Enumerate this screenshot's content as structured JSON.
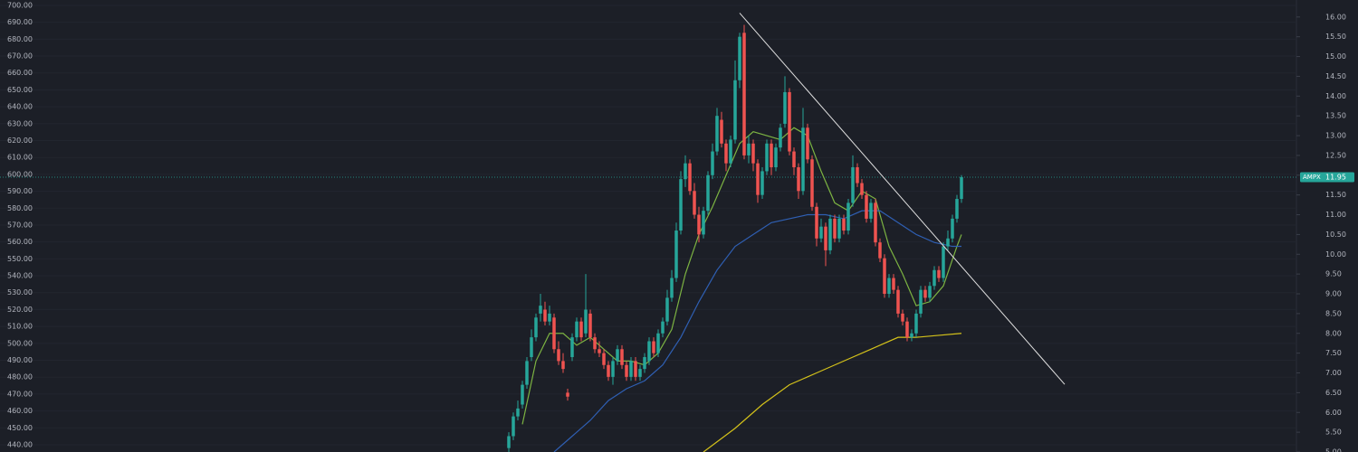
{
  "chart_data": {
    "type": "candlestick",
    "symbol": "AMPX",
    "last_price": 11.95,
    "grid": true,
    "ylim": [
      435.7,
      703.2
    ],
    "yticks": [
      {
        "value": 440,
        "label": "440.00"
      },
      {
        "value": 450,
        "label": "450.00"
      },
      {
        "value": 460,
        "label": "460.00"
      },
      {
        "value": 470,
        "label": "470.00"
      },
      {
        "value": 480,
        "label": "480.00"
      },
      {
        "value": 490,
        "label": "490.00"
      },
      {
        "value": 500,
        "label": "500.00"
      },
      {
        "value": 510,
        "label": "510.00"
      },
      {
        "value": 520,
        "label": "520.00"
      },
      {
        "value": 530,
        "label": "530.00"
      },
      {
        "value": 540,
        "label": "540.00"
      },
      {
        "value": 550,
        "label": "550.00"
      },
      {
        "value": 560,
        "label": "560.00"
      },
      {
        "value": 570,
        "label": "570.00"
      },
      {
        "value": 580,
        "label": "580.00"
      },
      {
        "value": 590,
        "label": "590.00"
      },
      {
        "value": 600,
        "label": "600.00"
      },
      {
        "value": 610,
        "label": "610.00"
      },
      {
        "value": 620,
        "label": "620.00"
      },
      {
        "value": 630,
        "label": "630.00"
      },
      {
        "value": 640,
        "label": "640.00"
      },
      {
        "value": 650,
        "label": "650.00"
      },
      {
        "value": 660,
        "label": "660.00"
      },
      {
        "value": 670,
        "label": "670.00"
      },
      {
        "value": 680,
        "label": "680.00"
      },
      {
        "value": 690,
        "label": "690.00"
      },
      {
        "value": 700,
        "label": "700.00"
      }
    ],
    "y2lim": [
      5,
      16.43
    ],
    "y2ticks": [
      {
        "value": 5,
        "label": "5.00"
      },
      {
        "value": 5.5,
        "label": "5.50"
      },
      {
        "value": 6,
        "label": "6.00"
      },
      {
        "value": 6.5,
        "label": "6.50"
      },
      {
        "value": 7,
        "label": "7.00"
      },
      {
        "value": 7.5,
        "label": "7.50"
      },
      {
        "value": 8,
        "label": "8.00"
      },
      {
        "value": 8.5,
        "label": "8.50"
      },
      {
        "value": 9,
        "label": "9.00"
      },
      {
        "value": 9.5,
        "label": "9.50"
      },
      {
        "value": 10,
        "label": "10.00"
      },
      {
        "value": 10.5,
        "label": "10.50"
      },
      {
        "value": 11,
        "label": "11.00"
      },
      {
        "value": 11.5,
        "label": "11.50"
      },
      {
        "value": 12,
        "label": "12.00"
      },
      {
        "value": 12.5,
        "label": "12.50"
      },
      {
        "value": 13,
        "label": "13.00"
      },
      {
        "value": 13.5,
        "label": "13.50"
      },
      {
        "value": 14,
        "label": "14.00"
      },
      {
        "value": 14.5,
        "label": "14.50"
      },
      {
        "value": 15,
        "label": "15.00"
      },
      {
        "value": 15.5,
        "label": "15.50"
      },
      {
        "value": 16,
        "label": "16.00"
      }
    ],
    "series": [
      {
        "type": "candlestick",
        "axis": "y2",
        "up_color": "#26a69a",
        "down_color": "#ef5350",
        "values": [
          [
            5.1,
            5.5,
            5.0,
            5.4
          ],
          [
            5.4,
            6.0,
            5.3,
            5.9
          ],
          [
            5.9,
            6.3,
            5.8,
            6.1
          ],
          [
            6.2,
            6.8,
            6.1,
            6.7
          ],
          [
            6.7,
            7.4,
            6.6,
            7.3
          ],
          [
            7.4,
            8.1,
            7.3,
            7.9
          ],
          [
            7.9,
            8.5,
            7.8,
            8.4
          ],
          [
            8.5,
            9.0,
            8.3,
            8.7
          ],
          [
            8.6,
            8.8,
            8.2,
            8.3
          ],
          [
            8.3,
            8.7,
            8.2,
            8.5
          ],
          [
            8.4,
            8.5,
            7.5,
            7.6
          ],
          [
            7.6,
            7.8,
            7.2,
            7.3
          ],
          [
            7.3,
            7.5,
            7.0,
            7.1
          ],
          [
            6.5,
            6.6,
            6.3,
            6.4
          ],
          [
            7.4,
            8.0,
            7.3,
            7.9
          ],
          [
            7.9,
            8.4,
            7.8,
            8.3
          ],
          [
            8.3,
            8.4,
            7.8,
            7.9
          ],
          [
            8.0,
            9.5,
            7.9,
            8.6
          ],
          [
            8.5,
            8.6,
            7.8,
            7.9
          ],
          [
            7.9,
            8.0,
            7.5,
            7.6
          ],
          [
            7.6,
            7.8,
            7.4,
            7.5
          ],
          [
            7.5,
            7.6,
            7.1,
            7.2
          ],
          [
            7.2,
            7.3,
            6.8,
            6.9
          ],
          [
            6.9,
            7.4,
            6.7,
            7.3
          ],
          [
            7.3,
            7.7,
            7.2,
            7.6
          ],
          [
            7.6,
            7.7,
            7.1,
            7.2
          ],
          [
            7.2,
            7.3,
            6.8,
            6.9
          ],
          [
            6.9,
            7.4,
            6.8,
            7.3
          ],
          [
            7.3,
            7.4,
            6.8,
            6.9
          ],
          [
            6.9,
            7.2,
            6.8,
            7.1
          ],
          [
            7.1,
            7.5,
            7.0,
            7.4
          ],
          [
            7.3,
            7.9,
            7.2,
            7.8
          ],
          [
            7.8,
            7.9,
            7.4,
            7.5
          ],
          [
            7.5,
            8.1,
            7.4,
            8.0
          ],
          [
            8.0,
            8.4,
            7.9,
            8.3
          ],
          [
            8.3,
            9.1,
            8.2,
            8.9
          ],
          [
            8.9,
            9.6,
            8.8,
            9.4
          ],
          [
            9.4,
            10.8,
            9.3,
            10.6
          ],
          [
            10.6,
            12.1,
            10.5,
            11.9
          ],
          [
            11.9,
            12.5,
            11.7,
            12.3
          ],
          [
            12.3,
            12.4,
            11.5,
            11.6
          ],
          [
            11.6,
            11.8,
            10.9,
            11.0
          ],
          [
            11.0,
            11.2,
            10.3,
            10.5
          ],
          [
            10.5,
            11.2,
            10.4,
            11.1
          ],
          [
            11.1,
            12.1,
            11.0,
            12.0
          ],
          [
            12.0,
            12.8,
            11.9,
            12.6
          ],
          [
            12.6,
            13.7,
            12.5,
            13.5
          ],
          [
            13.4,
            13.6,
            12.7,
            12.8
          ],
          [
            12.8,
            12.9,
            12.1,
            12.3
          ],
          [
            12.3,
            13.0,
            12.2,
            12.9
          ],
          [
            12.9,
            14.9,
            12.8,
            14.4
          ],
          [
            14.4,
            15.6,
            14.2,
            15.5
          ],
          [
            15.6,
            15.8,
            12.4,
            12.5
          ],
          [
            12.5,
            13.0,
            12.3,
            12.8
          ],
          [
            12.8,
            12.9,
            12.1,
            12.3
          ],
          [
            12.3,
            12.4,
            11.3,
            11.5
          ],
          [
            11.5,
            12.2,
            11.4,
            12.1
          ],
          [
            12.1,
            12.9,
            12.0,
            12.8
          ],
          [
            12.8,
            12.9,
            12.0,
            12.2
          ],
          [
            12.2,
            12.8,
            12.1,
            12.7
          ],
          [
            12.7,
            13.3,
            12.6,
            13.2
          ],
          [
            13.3,
            14.5,
            13.2,
            14.1
          ],
          [
            14.1,
            14.2,
            12.5,
            12.6
          ],
          [
            12.6,
            12.7,
            12.0,
            12.2
          ],
          [
            12.2,
            12.3,
            11.4,
            11.6
          ],
          [
            11.6,
            13.7,
            11.5,
            13.2
          ],
          [
            13.2,
            13.3,
            12.3,
            12.4
          ],
          [
            12.4,
            12.5,
            11.1,
            11.2
          ],
          [
            11.2,
            11.3,
            10.2,
            10.4
          ],
          [
            10.4,
            10.9,
            10.3,
            10.7
          ],
          [
            10.7,
            10.8,
            9.7,
            10.1
          ],
          [
            10.1,
            11.0,
            10.0,
            10.9
          ],
          [
            10.9,
            11.0,
            10.3,
            10.4
          ],
          [
            10.4,
            11.0,
            10.3,
            10.9
          ],
          [
            10.9,
            11.0,
            10.5,
            10.6
          ],
          [
            10.6,
            11.4,
            10.5,
            11.3
          ],
          [
            11.3,
            12.5,
            11.2,
            12.2
          ],
          [
            12.2,
            12.3,
            11.7,
            11.8
          ],
          [
            11.8,
            11.9,
            11.4,
            11.5
          ],
          [
            11.5,
            11.6,
            10.8,
            10.9
          ],
          [
            10.9,
            11.4,
            10.8,
            11.3
          ],
          [
            11.3,
            11.4,
            10.2,
            10.3
          ],
          [
            10.3,
            10.4,
            9.8,
            9.9
          ],
          [
            9.9,
            10.0,
            8.9,
            9.0
          ],
          [
            9.0,
            9.5,
            8.9,
            9.4
          ],
          [
            9.4,
            9.5,
            9.0,
            9.1
          ],
          [
            9.1,
            9.2,
            8.4,
            8.5
          ],
          [
            8.5,
            8.6,
            8.2,
            8.3
          ],
          [
            8.3,
            8.4,
            7.8,
            7.9
          ],
          [
            7.9,
            8.1,
            7.8,
            8.0
          ],
          [
            8.0,
            8.6,
            7.9,
            8.5
          ],
          [
            8.5,
            9.2,
            8.4,
            9.1
          ],
          [
            9.1,
            9.2,
            8.8,
            8.9
          ],
          [
            8.9,
            9.3,
            8.8,
            9.2
          ],
          [
            9.2,
            9.7,
            9.1,
            9.6
          ],
          [
            9.6,
            9.7,
            9.3,
            9.4
          ],
          [
            9.4,
            10.3,
            9.3,
            10.2
          ],
          [
            10.2,
            10.6,
            10.1,
            10.4
          ],
          [
            10.4,
            11.0,
            10.3,
            10.9
          ],
          [
            10.9,
            11.5,
            10.8,
            11.4
          ],
          [
            11.4,
            12.0,
            11.3,
            11.95
          ]
        ]
      },
      {
        "type": "line",
        "axis": "y2",
        "color": "#7cb342",
        "x": [
          3,
          6,
          9,
          12,
          15,
          18,
          21,
          24,
          27,
          30,
          33,
          36,
          39,
          42,
          45,
          48,
          51,
          54,
          57,
          60,
          63,
          66,
          69,
          72,
          75,
          78,
          81,
          84,
          87,
          90,
          93,
          96,
          99,
          100
        ],
        "values": [
          5.7,
          7.3,
          8.0,
          8.0,
          7.7,
          7.9,
          7.6,
          7.3,
          7.3,
          7.2,
          7.5,
          8.1,
          9.5,
          10.5,
          11.2,
          12.0,
          12.8,
          13.1,
          13.0,
          12.9,
          13.2,
          13.0,
          12.1,
          11.3,
          11.1,
          11.6,
          11.4,
          10.2,
          9.5,
          8.7,
          8.8,
          9.2,
          10.2,
          10.5
        ]
      },
      {
        "type": "line",
        "axis": "y2",
        "color": "#2f5fb3",
        "x": [
          10,
          14,
          18,
          22,
          26,
          30,
          34,
          38,
          42,
          46,
          50,
          54,
          58,
          62,
          66,
          70,
          74,
          78,
          82,
          86,
          90,
          94,
          98,
          100
        ],
        "values": [
          5.0,
          5.4,
          5.8,
          6.3,
          6.6,
          6.8,
          7.2,
          7.9,
          8.8,
          9.6,
          10.2,
          10.5,
          10.8,
          10.9,
          11.0,
          11.0,
          10.9,
          11.1,
          11.1,
          10.8,
          10.5,
          10.3,
          10.2,
          10.2
        ]
      },
      {
        "type": "line",
        "axis": "y2",
        "color": "#d4c21a",
        "x": [
          43,
          50,
          56,
          62,
          68,
          74,
          80,
          86,
          90,
          95,
          100
        ],
        "values": [
          5.0,
          5.6,
          6.2,
          6.7,
          7.0,
          7.3,
          7.6,
          7.9,
          7.9,
          7.95,
          8.0
        ]
      }
    ],
    "trendline": {
      "axis": "y2",
      "color": "#e0e0e0",
      "x": [
        51,
        122.8
      ],
      "values": [
        16.1,
        6.71
      ]
    }
  }
}
